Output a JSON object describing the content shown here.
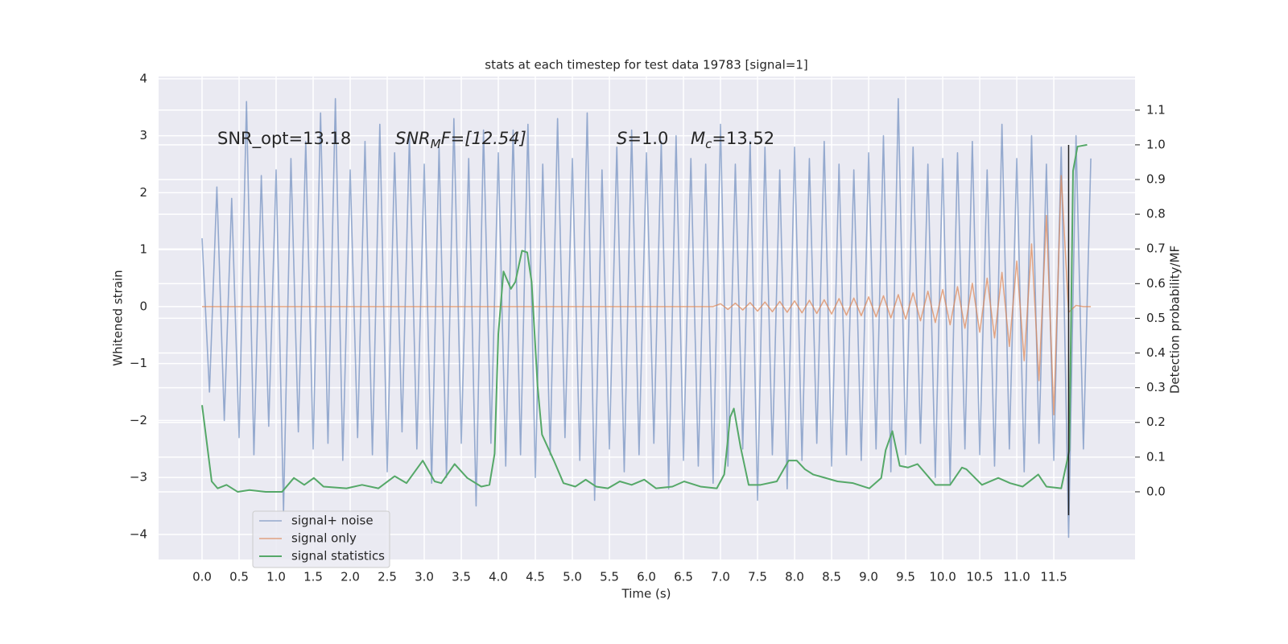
{
  "chart_data": {
    "type": "line",
    "title": "stats at each timestep for test data 19783 [signal=1]",
    "xlabel": "Time (s)",
    "ylabel": "Whitened strain",
    "y2label": "Detection probability/MF",
    "xlim": [
      -0.587,
      12.597
    ],
    "ylim": [
      -4.44,
      4.04
    ],
    "y2lim": [
      -0.195,
      1.197
    ],
    "xticks": [
      {
        "value": 0,
        "label": "0.0"
      },
      0.5,
      {
        "value": 1,
        "label": "1.0"
      },
      1.5,
      {
        "value": 2,
        "label": "2.0"
      },
      2.5,
      {
        "value": 3,
        "label": "3.0"
      },
      3.5,
      {
        "value": 4,
        "label": "4.0"
      },
      4.5,
      {
        "value": 5,
        "label": "5.0"
      },
      5.5,
      {
        "value": 6,
        "label": "6.0"
      },
      6.5,
      {
        "value": 7,
        "label": "7.0"
      },
      7.5,
      {
        "value": 8,
        "label": "8.0"
      },
      8.5,
      {
        "value": 9,
        "label": "9.0"
      },
      9.5,
      {
        "value": 10,
        "label": "10.0"
      },
      10.5,
      {
        "value": 11,
        "label": "11.0"
      },
      11.5
    ],
    "yticks": [
      {
        "value": -4,
        "label": "−4"
      },
      {
        "value": -3,
        "label": "−3"
      },
      {
        "value": -2,
        "label": "−2"
      },
      {
        "value": -1,
        "label": "−1"
      },
      0,
      1,
      2,
      3,
      4
    ],
    "y2ticks": [
      {
        "value": 0,
        "label": "0.0"
      },
      0.1,
      0.2,
      0.3,
      0.4,
      0.5,
      0.6,
      0.7,
      0.8,
      0.9,
      {
        "value": 1,
        "label": "1.0"
      },
      1.1
    ],
    "grid": true,
    "legend": "lower left",
    "vline": 11.7,
    "annotations": [
      {
        "text": "SNR_opt=13.18"
      },
      {
        "main": "SNR",
        "sub": "M",
        "tail": "F=[12.54]"
      },
      {
        "main": "S",
        "tail": "=1.0"
      },
      {
        "main": "M",
        "sub": "c",
        "tail": "=13.52"
      }
    ],
    "series": [
      {
        "name": "signal+ noise",
        "color": "#4c72b0",
        "x": [
          0,
          0.1,
          0.2,
          0.3,
          0.4,
          0.5,
          0.6,
          0.7,
          0.8,
          0.9,
          1.0,
          1.1,
          1.2,
          1.3,
          1.4,
          1.5,
          1.6,
          1.7,
          1.8,
          1.9,
          2.0,
          2.1,
          2.2,
          2.3,
          2.4,
          2.5,
          2.6,
          2.7,
          2.8,
          2.9,
          3.0,
          3.1,
          3.2,
          3.3,
          3.4,
          3.5,
          3.6,
          3.7,
          3.8,
          3.9,
          4.0,
          4.1,
          4.2,
          4.3,
          4.4,
          4.5,
          4.6,
          4.7,
          4.8,
          4.9,
          5.0,
          5.1,
          5.2,
          5.3,
          5.4,
          5.5,
          5.6,
          5.7,
          5.8,
          5.9,
          6.0,
          6.1,
          6.2,
          6.3,
          6.4,
          6.5,
          6.6,
          6.7,
          6.8,
          6.9,
          7.0,
          7.1,
          7.2,
          7.3,
          7.4,
          7.5,
          7.6,
          7.7,
          7.8,
          7.9,
          8.0,
          8.1,
          8.2,
          8.3,
          8.4,
          8.5,
          8.6,
          8.7,
          8.8,
          8.9,
          9.0,
          9.1,
          9.2,
          9.3,
          9.4,
          9.5,
          9.6,
          9.7,
          9.8,
          9.9,
          10.0,
          10.1,
          10.2,
          10.3,
          10.4,
          10.5,
          10.6,
          10.7,
          10.8,
          10.9,
          11.0,
          11.1,
          11.2,
          11.3,
          11.4,
          11.5,
          11.6,
          11.7,
          11.8,
          11.9,
          12.0
        ],
        "values": [
          1.2,
          -1.5,
          2.1,
          -2.0,
          1.9,
          -2.3,
          3.6,
          -2.6,
          2.3,
          -2.1,
          2.4,
          -3.6,
          2.6,
          -2.2,
          2.9,
          -2.5,
          3.4,
          -2.4,
          3.65,
          -2.7,
          2.4,
          -2.3,
          2.9,
          -2.6,
          3.2,
          -2.9,
          2.7,
          -2.2,
          3.0,
          -2.5,
          2.5,
          -3.1,
          2.8,
          -3.0,
          3.3,
          -2.4,
          2.6,
          -3.5,
          3.1,
          -2.4,
          2.7,
          -2.8,
          3.1,
          -2.6,
          3.2,
          -3.0,
          2.5,
          -2.6,
          3.3,
          -2.3,
          2.6,
          -2.7,
          3.4,
          -3.4,
          2.4,
          -2.5,
          2.8,
          -2.9,
          3.1,
          -2.6,
          2.7,
          -2.4,
          2.9,
          -3.2,
          3.0,
          -2.7,
          2.6,
          -2.8,
          2.5,
          -3.1,
          3.2,
          -2.8,
          2.5,
          -2.5,
          2.9,
          -3.4,
          2.8,
          -2.6,
          2.4,
          -3.2,
          2.8,
          -2.7,
          2.6,
          -2.4,
          2.9,
          -2.8,
          2.5,
          -2.6,
          2.4,
          -2.7,
          2.7,
          -2.5,
          3.0,
          -2.9,
          3.65,
          -2.6,
          2.8,
          -2.4,
          2.5,
          -3.0,
          2.6,
          -3.1,
          2.7,
          -2.5,
          2.9,
          -2.6,
          2.4,
          -2.8,
          3.2,
          -2.5,
          2.6,
          -2.9,
          3.0,
          -2.4,
          2.5,
          -2.7,
          2.8,
          -4.05,
          3.0,
          -2.5,
          2.6
        ]
      },
      {
        "name": "signal only",
        "color": "#dd8452",
        "x": [
          0,
          6.9,
          7.0,
          7.1,
          7.2,
          7.3,
          7.4,
          7.5,
          7.6,
          7.7,
          7.8,
          7.9,
          8.0,
          8.1,
          8.2,
          8.3,
          8.4,
          8.5,
          8.6,
          8.7,
          8.8,
          8.9,
          9.0,
          9.1,
          9.2,
          9.3,
          9.4,
          9.5,
          9.6,
          9.7,
          9.8,
          9.9,
          10.0,
          10.1,
          10.2,
          10.3,
          10.4,
          10.5,
          10.6,
          10.7,
          10.8,
          10.9,
          11.0,
          11.1,
          11.2,
          11.3,
          11.4,
          11.5,
          11.6,
          11.7,
          11.8,
          11.9,
          12.0
        ],
        "values": [
          0,
          0,
          0.05,
          -0.05,
          0.06,
          -0.06,
          0.07,
          -0.08,
          0.08,
          -0.09,
          0.09,
          -0.1,
          0.1,
          -0.11,
          0.11,
          -0.12,
          0.12,
          -0.13,
          0.14,
          -0.15,
          0.15,
          -0.16,
          0.17,
          -0.18,
          0.19,
          -0.2,
          0.21,
          -0.22,
          0.24,
          -0.25,
          0.27,
          -0.28,
          0.3,
          -0.32,
          0.35,
          -0.38,
          0.41,
          -0.45,
          0.5,
          -0.55,
          0.6,
          -0.7,
          0.8,
          -0.95,
          1.1,
          -1.3,
          1.6,
          -1.9,
          2.3,
          -0.1,
          0.02,
          0,
          0
        ]
      },
      {
        "name": "signal statistics",
        "color": "#55a868",
        "axis": "y2",
        "x": [
          0,
          0.13,
          0.21,
          0.33,
          0.48,
          0.64,
          0.86,
          1.08,
          1.24,
          1.38,
          1.51,
          1.64,
          1.95,
          2.16,
          2.38,
          2.6,
          2.76,
          2.98,
          3.14,
          3.23,
          3.41,
          3.58,
          3.77,
          3.88,
          3.95,
          4.0,
          4.07,
          4.17,
          4.23,
          4.32,
          4.39,
          4.45,
          4.53,
          4.59,
          4.75,
          4.88,
          5.04,
          5.18,
          5.32,
          5.48,
          5.64,
          5.8,
          5.97,
          6.13,
          6.35,
          6.51,
          6.73,
          6.95,
          7.05,
          7.13,
          7.18,
          7.27,
          7.38,
          7.54,
          7.76,
          7.92,
          8.03,
          8.14,
          8.25,
          8.58,
          8.79,
          9.01,
          9.17,
          9.23,
          9.32,
          9.42,
          9.53,
          9.66,
          9.9,
          10.1,
          10.26,
          10.32,
          10.53,
          10.75,
          10.91,
          11.08,
          11.29,
          11.4,
          11.6,
          11.71,
          11.76,
          11.82,
          11.95
        ],
        "values": [
          0.25,
          0.03,
          0.01,
          0.02,
          0,
          0.005,
          0,
          0,
          0.04,
          0.02,
          0.04,
          0.015,
          0.01,
          0.02,
          0.01,
          0.045,
          0.025,
          0.09,
          0.03,
          0.025,
          0.08,
          0.04,
          0.015,
          0.02,
          0.11,
          0.455,
          0.635,
          0.585,
          0.605,
          0.695,
          0.69,
          0.605,
          0.305,
          0.165,
          0.09,
          0.025,
          0.015,
          0.035,
          0.015,
          0.01,
          0.03,
          0.02,
          0.035,
          0.01,
          0.015,
          0.03,
          0.015,
          0.01,
          0.05,
          0.215,
          0.24,
          0.13,
          0.02,
          0.02,
          0.03,
          0.09,
          0.09,
          0.065,
          0.05,
          0.03,
          0.025,
          0.01,
          0.04,
          0.12,
          0.175,
          0.075,
          0.07,
          0.08,
          0.02,
          0.02,
          0.07,
          0.065,
          0.02,
          0.04,
          0.025,
          0.015,
          0.05,
          0.015,
          0.01,
          0.12,
          0.925,
          0.995,
          1.0
        ]
      }
    ]
  }
}
